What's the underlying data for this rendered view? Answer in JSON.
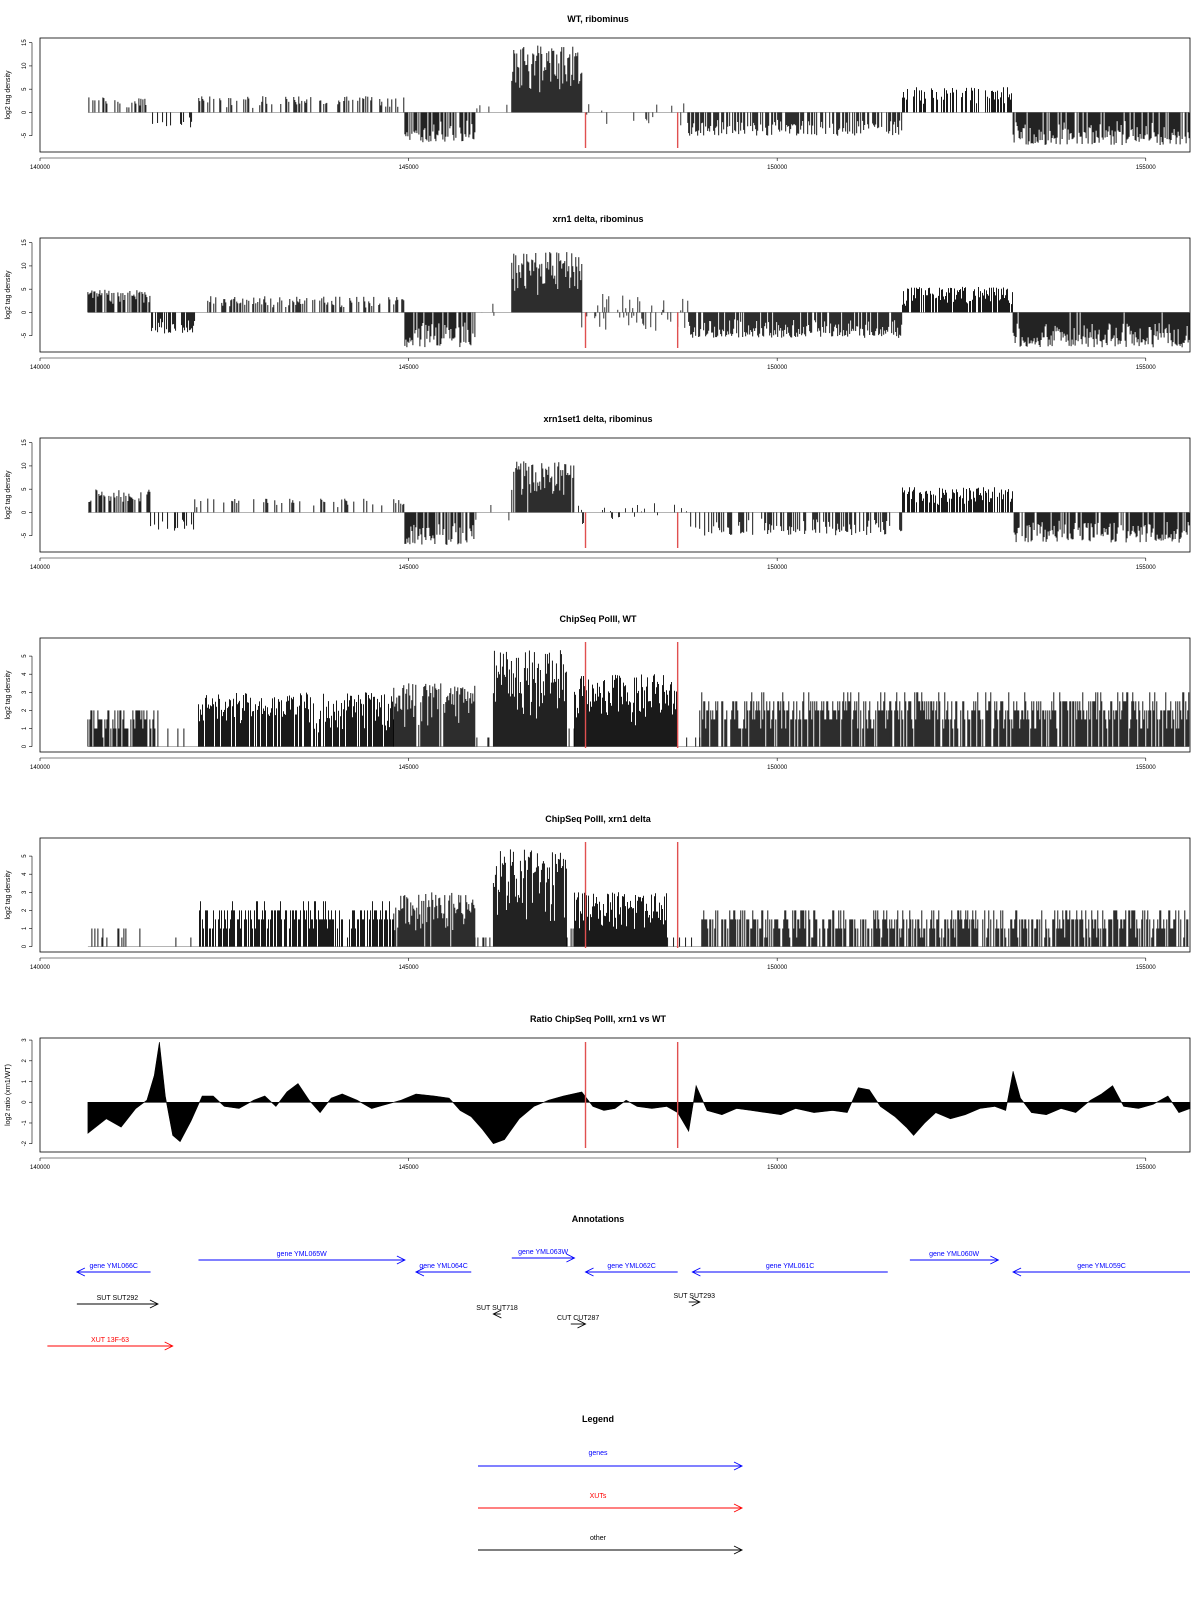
{
  "chart_data": [
    {
      "type": "area",
      "title": "WT, ribominus",
      "ylabel": "log2 tag density",
      "xlim": [
        140000,
        155600
      ],
      "ylim": [
        -8.5,
        16
      ],
      "yticks": [
        -5,
        0,
        5,
        10,
        15
      ],
      "xticks": [
        140000,
        145000,
        150000,
        155000
      ],
      "xtick_labels": [
        "140000",
        "145000",
        "150000",
        "155000"
      ],
      "data_range": [
        140650,
        155600
      ],
      "vlines": [
        147400,
        148650
      ],
      "segments": [
        {
          "x0": 140650,
          "x1": 141500,
          "min": 0,
          "max": 3.5,
          "fill": 0.35
        },
        {
          "x0": 141500,
          "x1": 142100,
          "min": -3.5,
          "max": 0,
          "fill": 0.15
        },
        {
          "x0": 142100,
          "x1": 144950,
          "min": 0,
          "max": 3.5,
          "fill": 0.35
        },
        {
          "x0": 144950,
          "x1": 145900,
          "min": -6.5,
          "max": 0,
          "fill": 0.7
        },
        {
          "x0": 145900,
          "x1": 146400,
          "min": -2,
          "max": 2,
          "fill": 0.1
        },
        {
          "x0": 146400,
          "x1": 147350,
          "min": 0,
          "max": 14.5,
          "fill": 1.0
        },
        {
          "x0": 147350,
          "x1": 148800,
          "min": -3,
          "max": 2,
          "fill": 0.15
        },
        {
          "x0": 148800,
          "x1": 151700,
          "min": -5,
          "max": 0,
          "fill": 0.6
        },
        {
          "x0": 151700,
          "x1": 153200,
          "min": 0,
          "max": 5.5,
          "fill": 0.6
        },
        {
          "x0": 153200,
          "x1": 155600,
          "min": -7,
          "max": 0,
          "fill": 0.85
        }
      ]
    },
    {
      "type": "area",
      "title": "xrn1 delta, ribominus",
      "ylabel": "log2 tag density",
      "xlim": [
        140000,
        155600
      ],
      "ylim": [
        -8.5,
        16
      ],
      "yticks": [
        -5,
        0,
        5,
        10,
        15
      ],
      "xticks": [
        140000,
        145000,
        150000,
        155000
      ],
      "xtick_labels": [
        "140000",
        "145000",
        "150000",
        "155000"
      ],
      "data_range": [
        140650,
        155600
      ],
      "vlines": [
        147400,
        148650
      ],
      "segments": [
        {
          "x0": 140650,
          "x1": 141500,
          "min": 0,
          "max": 5,
          "fill": 0.75
        },
        {
          "x0": 141500,
          "x1": 142100,
          "min": -4.5,
          "max": 0,
          "fill": 0.5
        },
        {
          "x0": 142100,
          "x1": 144950,
          "min": 0,
          "max": 3.5,
          "fill": 0.45
        },
        {
          "x0": 144950,
          "x1": 145900,
          "min": -7.5,
          "max": 0,
          "fill": 0.85
        },
        {
          "x0": 145900,
          "x1": 146400,
          "min": -2,
          "max": 2,
          "fill": 0.1
        },
        {
          "x0": 146400,
          "x1": 147350,
          "min": 0,
          "max": 13,
          "fill": 1.0
        },
        {
          "x0": 147350,
          "x1": 148800,
          "min": -4,
          "max": 4,
          "fill": 0.4
        },
        {
          "x0": 148800,
          "x1": 151700,
          "min": -5.5,
          "max": 0,
          "fill": 0.85
        },
        {
          "x0": 151700,
          "x1": 153200,
          "min": 0,
          "max": 5.5,
          "fill": 0.85
        },
        {
          "x0": 153200,
          "x1": 155600,
          "min": -7.5,
          "max": 0,
          "fill": 0.95
        }
      ]
    },
    {
      "type": "area",
      "title": "xrn1set1 delta, ribominus",
      "ylabel": "log2 tag density",
      "xlim": [
        140000,
        155600
      ],
      "ylim": [
        -8.5,
        16
      ],
      "yticks": [
        -5,
        0,
        5,
        10,
        15
      ],
      "xticks": [
        140000,
        145000,
        150000,
        155000
      ],
      "xtick_labels": [
        "140000",
        "145000",
        "150000",
        "155000"
      ],
      "data_range": [
        140650,
        155600
      ],
      "vlines": [
        147400,
        148650
      ],
      "segments": [
        {
          "x0": 140650,
          "x1": 141500,
          "min": 0,
          "max": 5,
          "fill": 0.55
        },
        {
          "x0": 141500,
          "x1": 142100,
          "min": -4,
          "max": 0,
          "fill": 0.35
        },
        {
          "x0": 142100,
          "x1": 144950,
          "min": 0,
          "max": 3,
          "fill": 0.2
        },
        {
          "x0": 144950,
          "x1": 145900,
          "min": -7,
          "max": 0,
          "fill": 0.75
        },
        {
          "x0": 145900,
          "x1": 146400,
          "min": -2,
          "max": 2,
          "fill": 0.1
        },
        {
          "x0": 146400,
          "x1": 147250,
          "min": 0,
          "max": 11,
          "fill": 0.95
        },
        {
          "x0": 147250,
          "x1": 148800,
          "min": -3,
          "max": 2,
          "fill": 0.2
        },
        {
          "x0": 148800,
          "x1": 151700,
          "min": -5,
          "max": 0,
          "fill": 0.45
        },
        {
          "x0": 151700,
          "x1": 153200,
          "min": 0,
          "max": 5.5,
          "fill": 0.7
        },
        {
          "x0": 153200,
          "x1": 155600,
          "min": -6.5,
          "max": 0,
          "fill": 0.85
        }
      ]
    },
    {
      "type": "area",
      "title": "ChipSeq PolII, WT",
      "ylabel": "log2 tag density",
      "xlim": [
        140000,
        155600
      ],
      "ylim": [
        -0.3,
        6
      ],
      "yticks": [
        0,
        1,
        2,
        3,
        4,
        5
      ],
      "xticks": [
        140000,
        145000,
        150000,
        155000
      ],
      "xtick_labels": [
        "140000",
        "145000",
        "150000",
        "155000"
      ],
      "data_range": [
        140650,
        155600
      ],
      "vlines": [
        147400,
        148650
      ],
      "segments": [
        {
          "x0": 140650,
          "x1": 141600,
          "min": 0,
          "max": 2,
          "fill": 0.7
        },
        {
          "x0": 141600,
          "x1": 142150,
          "min": 0,
          "max": 1,
          "fill": 0.15
        },
        {
          "x0": 142150,
          "x1": 144800,
          "min": 0,
          "max": 3,
          "fill": 0.85
        },
        {
          "x0": 144800,
          "x1": 145900,
          "min": 0,
          "max": 3.5,
          "fill": 0.95
        },
        {
          "x0": 145900,
          "x1": 146150,
          "min": 0,
          "max": 0.5,
          "fill": 0.1
        },
        {
          "x0": 146150,
          "x1": 147150,
          "min": 0,
          "max": 5.4,
          "fill": 1.0
        },
        {
          "x0": 147150,
          "x1": 147250,
          "min": 0,
          "max": 1.5,
          "fill": 0.3
        },
        {
          "x0": 147250,
          "x1": 148650,
          "min": 0,
          "max": 4,
          "fill": 1.0
        },
        {
          "x0": 148650,
          "x1": 148950,
          "min": 0,
          "max": 0.5,
          "fill": 0.1
        },
        {
          "x0": 148950,
          "x1": 155600,
          "min": 0,
          "max": 2.9,
          "fill": 0.85
        }
      ]
    },
    {
      "type": "area",
      "title": "ChipSeq PolII, xrn1 delta",
      "ylabel": "log2 tag density",
      "xlim": [
        140000,
        155600
      ],
      "ylim": [
        -0.3,
        6
      ],
      "yticks": [
        0,
        1,
        2,
        3,
        4,
        5
      ],
      "xticks": [
        140000,
        145000,
        150000,
        155000
      ],
      "xtick_labels": [
        "140000",
        "145000",
        "150000",
        "155000"
      ],
      "data_range": [
        140650,
        155600
      ],
      "vlines": [
        147400,
        148650
      ],
      "segments": [
        {
          "x0": 140650,
          "x1": 141600,
          "min": 0,
          "max": 1.2,
          "fill": 0.2
        },
        {
          "x0": 141600,
          "x1": 142150,
          "min": 0,
          "max": 0.5,
          "fill": 0.05
        },
        {
          "x0": 142150,
          "x1": 144800,
          "min": 0,
          "max": 2.4,
          "fill": 0.75
        },
        {
          "x0": 144800,
          "x1": 145900,
          "min": 0,
          "max": 3,
          "fill": 0.9
        },
        {
          "x0": 145900,
          "x1": 146150,
          "min": 0,
          "max": 0.5,
          "fill": 0.1
        },
        {
          "x0": 146150,
          "x1": 147150,
          "min": 0,
          "max": 5.4,
          "fill": 1.0
        },
        {
          "x0": 147150,
          "x1": 147250,
          "min": 0,
          "max": 1.5,
          "fill": 0.3
        },
        {
          "x0": 147250,
          "x1": 148500,
          "min": 0,
          "max": 3,
          "fill": 1.0
        },
        {
          "x0": 148500,
          "x1": 148950,
          "min": 0,
          "max": 0.5,
          "fill": 0.1
        },
        {
          "x0": 148950,
          "x1": 155600,
          "min": 0,
          "max": 2,
          "fill": 0.7
        }
      ]
    },
    {
      "type": "area",
      "title": "Ratio ChipSeq PolII, xrn1 vs WT",
      "ylabel": "log2 ratio (xrn1/WT)",
      "xlim": [
        140000,
        155600
      ],
      "ylim": [
        -2.4,
        3.1
      ],
      "yticks": [
        -2,
        -1,
        0,
        1,
        2,
        3
      ],
      "xticks": [
        140000,
        145000,
        150000,
        155000
      ],
      "xtick_labels": [
        "140000",
        "145000",
        "150000",
        "155000"
      ],
      "data_range": [
        140650,
        155600
      ],
      "vlines": [
        147400,
        148650
      ],
      "curve": [
        [
          140650,
          -1.5
        ],
        [
          140900,
          -0.8
        ],
        [
          141100,
          -1.2
        ],
        [
          141300,
          -0.3
        ],
        [
          141450,
          0.1
        ],
        [
          141550,
          1.3
        ],
        [
          141620,
          2.9
        ],
        [
          141700,
          0.3
        ],
        [
          141800,
          -1.6
        ],
        [
          141900,
          -1.9
        ],
        [
          142050,
          -0.9
        ],
        [
          142200,
          0.3
        ],
        [
          142350,
          0.3
        ],
        [
          142500,
          -0.2
        ],
        [
          142700,
          -0.3
        ],
        [
          142900,
          0.1
        ],
        [
          143050,
          0.3
        ],
        [
          143200,
          -0.2
        ],
        [
          143350,
          0.5
        ],
        [
          143500,
          0.9
        ],
        [
          143650,
          0.1
        ],
        [
          143800,
          -0.5
        ],
        [
          143950,
          0.2
        ],
        [
          144100,
          0.4
        ],
        [
          144300,
          0.1
        ],
        [
          144500,
          -0.3
        ],
        [
          144700,
          -0.1
        ],
        [
          144900,
          0.1
        ],
        [
          145100,
          0.4
        ],
        [
          145350,
          0.3
        ],
        [
          145550,
          0.2
        ],
        [
          145700,
          -0.4
        ],
        [
          145850,
          -0.7
        ],
        [
          146000,
          -1.3
        ],
        [
          146150,
          -2.0
        ],
        [
          146300,
          -1.8
        ],
        [
          146500,
          -0.8
        ],
        [
          146700,
          -0.2
        ],
        [
          146900,
          0.1
        ],
        [
          147100,
          0.3
        ],
        [
          147350,
          0.5
        ],
        [
          147500,
          -0.2
        ],
        [
          147650,
          -0.4
        ],
        [
          147800,
          -0.3
        ],
        [
          147950,
          0.1
        ],
        [
          148100,
          -0.2
        ],
        [
          148300,
          -0.3
        ],
        [
          148500,
          -0.2
        ],
        [
          148650,
          -0.5
        ],
        [
          148800,
          -1.4
        ],
        [
          148900,
          0.8
        ],
        [
          149050,
          -0.4
        ],
        [
          149250,
          -0.6
        ],
        [
          149450,
          -0.3
        ],
        [
          149650,
          -0.4
        ],
        [
          149850,
          -0.5
        ],
        [
          150050,
          -0.6
        ],
        [
          150250,
          -0.3
        ],
        [
          150500,
          -0.5
        ],
        [
          150750,
          -0.4
        ],
        [
          150950,
          -0.5
        ],
        [
          151100,
          0.7
        ],
        [
          151250,
          0.6
        ],
        [
          151400,
          -0.2
        ],
        [
          151600,
          -0.7
        ],
        [
          151750,
          -1.2
        ],
        [
          151850,
          -1.6
        ],
        [
          152000,
          -1.0
        ],
        [
          152150,
          -0.5
        ],
        [
          152350,
          -0.8
        ],
        [
          152550,
          -0.6
        ],
        [
          152750,
          -0.3
        ],
        [
          152950,
          -0.2
        ],
        [
          153100,
          -0.4
        ],
        [
          153200,
          1.5
        ],
        [
          153300,
          0.2
        ],
        [
          153450,
          -0.5
        ],
        [
          153650,
          -0.6
        ],
        [
          153850,
          -0.3
        ],
        [
          154050,
          -0.5
        ],
        [
          154250,
          0.1
        ],
        [
          154400,
          0.4
        ],
        [
          154550,
          0.8
        ],
        [
          154700,
          -0.2
        ],
        [
          154900,
          -0.3
        ],
        [
          155100,
          -0.1
        ],
        [
          155300,
          0.3
        ],
        [
          155450,
          -0.5
        ],
        [
          155600,
          -0.3
        ]
      ]
    }
  ],
  "annotations": {
    "title": "Annotations",
    "genes": [
      {
        "label": "gene YML066C",
        "x0": 140500,
        "x1": 141500,
        "dir": "left"
      },
      {
        "label": "gene YML065W",
        "x0": 142150,
        "x1": 144950,
        "dir": "right"
      },
      {
        "label": "gene YML064C",
        "x0": 145100,
        "x1": 145850,
        "dir": "left"
      },
      {
        "label": "gene YML063W",
        "x0": 146400,
        "x1": 147250,
        "dir": "right"
      },
      {
        "label": "gene YML062C",
        "x0": 147400,
        "x1": 148650,
        "dir": "left"
      },
      {
        "label": "gene YML061C",
        "x0": 148850,
        "x1": 151500,
        "dir": "left"
      },
      {
        "label": "gene YML060W",
        "x0": 151800,
        "x1": 153000,
        "dir": "right"
      },
      {
        "label": "gene YML059C",
        "x0": 153200,
        "x1": 155600,
        "dir": "left"
      }
    ],
    "others": [
      {
        "label": "SUT SUT292",
        "x0": 140500,
        "x1": 141600,
        "dir": "right"
      },
      {
        "label": "SUT SUT718",
        "x0": 146150,
        "x1": 146250,
        "dir": "left"
      },
      {
        "label": "CUT CUT287",
        "x0": 147200,
        "x1": 147400,
        "dir": "right"
      },
      {
        "label": "SUT SUT293",
        "x0": 148800,
        "x1": 148950,
        "dir": "right"
      }
    ],
    "xuts": [
      {
        "label": "XUT 13F-63",
        "x0": 140100,
        "x1": 141800,
        "dir": "right"
      }
    ]
  },
  "legend": {
    "title": "Legend",
    "items": [
      {
        "label": "genes",
        "color": "#0000ff"
      },
      {
        "label": "XUTs",
        "color": "#ff0000"
      },
      {
        "label": "other",
        "color": "#000000"
      }
    ]
  },
  "colors": {
    "marker": "#e05050",
    "gene": "#0000ff",
    "xut": "#ff0000",
    "other": "#000000"
  }
}
